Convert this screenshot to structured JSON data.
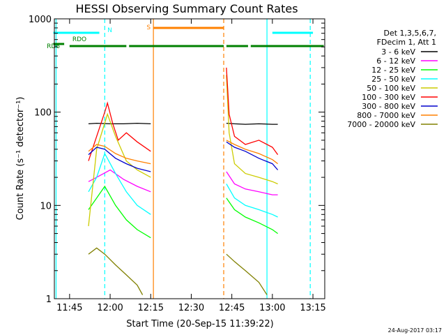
{
  "chart_data": {
    "type": "line",
    "title": "HESSI Observing Summary Count Rates",
    "xlabel": "Start Time (20-Sep-15 11:39:22)",
    "ylabel": "Count Rate (s⁻¹ detector⁻¹)",
    "y_scale": "log",
    "ylim": [
      1,
      1000
    ],
    "xlim": [
      "11:39:22",
      "13:19:22"
    ],
    "x_ticks": [
      "11:45",
      "12:00",
      "12:15",
      "12:30",
      "12:45",
      "13:00",
      "13:15"
    ],
    "y_ticks": [
      "1",
      "10",
      "100",
      "1000"
    ],
    "timestamp": "24-Aug-2017 03:17",
    "legend": {
      "placement": "right",
      "header": [
        "Det 1,3,5,6,7,",
        "FDecim 1, Att 1"
      ],
      "entries": [
        {
          "label": "3 - 6 keV",
          "color": "#000000"
        },
        {
          "label": "6 - 12 keV",
          "color": "#ff00ff"
        },
        {
          "label": "12 - 25 keV",
          "color": "#00ff00"
        },
        {
          "label": "25 - 50 keV",
          "color": "#00ffff"
        },
        {
          "label": "50 - 100 keV",
          "color": "#cccc00"
        },
        {
          "label": "100 - 300 keV",
          "color": "#ff0000"
        },
        {
          "label": "300 - 800 keV",
          "color": "#0000cc"
        },
        {
          "label": "800 - 7000 keV",
          "color": "#ff8000"
        },
        {
          "label": "7000 - 20000 keV",
          "color": "#808000"
        }
      ]
    },
    "orbit_flags": [
      {
        "label": "N",
        "color": "#00ffff",
        "segments": [
          [
            "11:39",
            "11:56"
          ],
          [
            "13:00",
            "13:15"
          ]
        ]
      },
      {
        "label": "S",
        "color": "#ff8000",
        "segments": [
          [
            "12:16",
            "12:42"
          ]
        ]
      },
      {
        "label": "RDO",
        "color": "#008000",
        "segments": [
          [
            "11:39",
            "11:43"
          ]
        ]
      },
      {
        "label": "RD6",
        "color": "#008000",
        "segments": [
          [
            "11:45",
            "12:06"
          ],
          [
            "12:07",
            "12:42"
          ],
          [
            "12:43",
            "12:51"
          ],
          [
            "12:52",
            "13:19"
          ]
        ]
      }
    ],
    "vlines": [
      {
        "time": "11:40",
        "color": "#00ffff",
        "style": "solid"
      },
      {
        "time": "11:58",
        "color": "#00ffff",
        "style": "dashed"
      },
      {
        "time": "12:16",
        "color": "#ff8000",
        "style": "solid"
      },
      {
        "time": "12:42",
        "color": "#ff8000",
        "style": "dashed"
      },
      {
        "time": "12:58",
        "color": "#00ffff",
        "style": "solid"
      },
      {
        "time": "13:14",
        "color": "#00ffff",
        "style": "dashed"
      }
    ],
    "series": [
      {
        "name": "3 - 6 keV",
        "color": "#000000",
        "segments": [
          {
            "t": [
              "11:52",
              "11:55",
              "12:00",
              "12:05",
              "12:10",
              "12:15"
            ],
            "v": [
              75,
              76,
              75,
              75,
              76,
              75
            ]
          },
          {
            "t": [
              "12:43",
              "12:46",
              "12:50",
              "12:55",
              "13:00",
              "13:02"
            ],
            "v": [
              76,
              75,
              74,
              75,
              74,
              74
            ]
          }
        ]
      },
      {
        "name": "6 - 12 keV",
        "color": "#ff00ff",
        "segments": [
          {
            "t": [
              "11:52",
              "11:55",
              "12:00",
              "12:05",
              "12:10",
              "12:15"
            ],
            "v": [
              18,
              20,
              24,
              19,
              16,
              14
            ]
          },
          {
            "t": [
              "12:43",
              "12:46",
              "12:50",
              "12:55",
              "13:00",
              "13:02"
            ],
            "v": [
              23,
              17,
              15,
              14,
              13,
              13
            ]
          }
        ]
      },
      {
        "name": "12 - 25 keV",
        "color": "#00ff00",
        "segments": [
          {
            "t": [
              "11:52",
              "11:55",
              "11:58",
              "12:02",
              "12:06",
              "12:10",
              "12:15"
            ],
            "v": [
              9,
              12,
              16,
              10,
              7,
              5.5,
              4.5
            ]
          },
          {
            "t": [
              "12:43",
              "12:46",
              "12:50",
              "12:55",
              "13:00",
              "13:02"
            ],
            "v": [
              12,
              9,
              7.5,
              6.5,
              5.5,
              5
            ]
          }
        ]
      },
      {
        "name": "25 - 50 keV",
        "color": "#00ffff",
        "segments": [
          {
            "t": [
              "11:52",
              "11:55",
              "11:58",
              "12:02",
              "12:06",
              "12:10",
              "12:15"
            ],
            "v": [
              14,
              20,
              36,
              22,
              14,
              10,
              8
            ]
          },
          {
            "t": [
              "12:43",
              "12:46",
              "12:50",
              "12:55",
              "13:00",
              "13:02"
            ],
            "v": [
              17,
              12,
              10,
              9,
              8,
              7.5
            ]
          }
        ]
      },
      {
        "name": "50 - 100 keV",
        "color": "#cccc00",
        "segments": [
          {
            "t": [
              "11:52",
              "11:55",
              "11:59",
              "12:02",
              "12:06",
              "12:10",
              "12:15"
            ],
            "v": [
              6,
              40,
              95,
              55,
              30,
              24,
              20
            ]
          },
          {
            "t": [
              "12:43",
              "12:44",
              "12:46",
              "12:50",
              "12:55",
              "13:00",
              "13:02"
            ],
            "v": [
              250,
              60,
              28,
              22,
              20,
              18,
              17
            ]
          }
        ]
      },
      {
        "name": "100 - 300 keV",
        "color": "#ff0000",
        "segments": [
          {
            "t": [
              "11:52",
              "11:55",
              "11:58",
              "11:59",
              "12:01",
              "12:03",
              "12:06",
              "12:10",
              "12:15"
            ],
            "v": [
              30,
              55,
              100,
              125,
              75,
              50,
              60,
              48,
              38
            ]
          },
          {
            "t": [
              "12:43",
              "12:44",
              "12:46",
              "12:50",
              "12:55",
              "13:00",
              "13:02"
            ],
            "v": [
              300,
              95,
              55,
              45,
              50,
              42,
              35
            ]
          }
        ]
      },
      {
        "name": "300 - 800 keV",
        "color": "#0000cc",
        "segments": [
          {
            "t": [
              "11:52",
              "11:55",
              "11:58",
              "12:02",
              "12:06",
              "12:10",
              "12:15"
            ],
            "v": [
              35,
              42,
              40,
              32,
              28,
              25,
              23
            ]
          },
          {
            "t": [
              "12:43",
              "12:46",
              "12:50",
              "12:55",
              "13:00",
              "13:02"
            ],
            "v": [
              48,
              42,
              38,
              32,
              28,
              24
            ]
          }
        ]
      },
      {
        "name": "800 - 7000 keV",
        "color": "#ff8000",
        "segments": [
          {
            "t": [
              "11:52",
              "11:55",
              "11:58",
              "12:02",
              "12:06",
              "12:10",
              "12:15"
            ],
            "v": [
              38,
              45,
              43,
              36,
              32,
              30,
              28
            ]
          },
          {
            "t": [
              "12:43",
              "12:46",
              "12:50",
              "12:55",
              "13:00",
              "13:02"
            ],
            "v": [
              50,
              45,
              40,
              36,
              31,
              28
            ]
          }
        ]
      },
      {
        "name": "7000 - 20000 keV",
        "color": "#808000",
        "segments": [
          {
            "t": [
              "11:52",
              "11:55",
              "11:58",
              "12:02",
              "12:06",
              "12:10",
              "12:12"
            ],
            "v": [
              3,
              3.5,
              3,
              2.3,
              1.8,
              1.4,
              1.1
            ]
          },
          {
            "t": [
              "12:43",
              "12:46",
              "12:50",
              "12:55",
              "12:58"
            ],
            "v": [
              3,
              2.5,
              2,
              1.5,
              1.1
            ]
          }
        ]
      }
    ]
  }
}
